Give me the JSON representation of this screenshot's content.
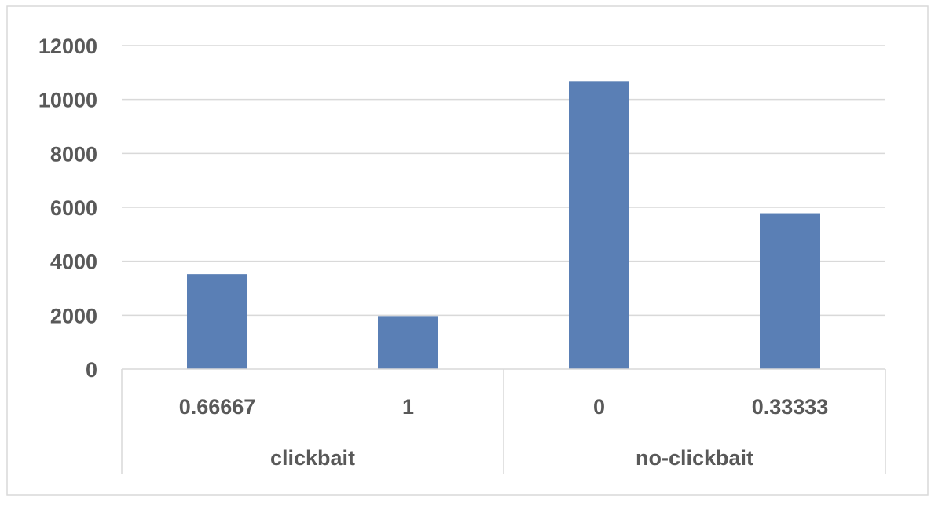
{
  "chart_data": {
    "type": "bar",
    "title": "",
    "xlabel": "",
    "ylabel": "",
    "ylim": [
      0,
      12000
    ],
    "yticks": [
      0,
      2000,
      4000,
      6000,
      8000,
      10000,
      12000
    ],
    "grid": true,
    "legend": "none",
    "groups": [
      {
        "label": "clickbait",
        "categories": [
          "0.66667",
          "1"
        ]
      },
      {
        "label": "no-clickbait",
        "categories": [
          "0",
          "0.33333"
        ]
      }
    ],
    "categories": [
      "0.66667",
      "1",
      "0",
      "0.33333"
    ],
    "series": [
      {
        "values": [
          3520,
          1970,
          10680,
          5780
        ],
        "color": "#5a7fb5"
      }
    ]
  }
}
